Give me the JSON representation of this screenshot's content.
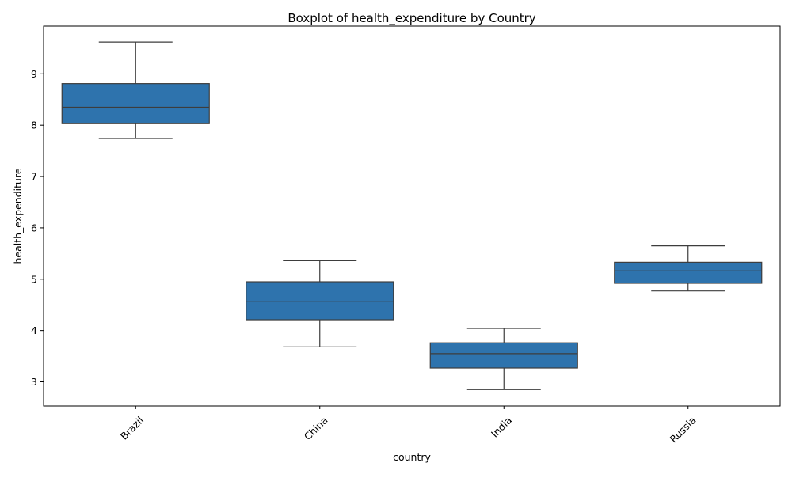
{
  "chart_data": {
    "type": "boxplot",
    "title": "Boxplot of health_expenditure by Country",
    "xlabel": "country",
    "ylabel": "health_expenditure",
    "ylim": [
      2.53,
      9.93
    ],
    "y_ticks": [
      3,
      4,
      5,
      6,
      7,
      8,
      9
    ],
    "y_tick_labels": [
      "3",
      "4",
      "5",
      "6",
      "7",
      "8",
      "9"
    ],
    "x_tick_rotation_deg": 45,
    "grid": false,
    "legend": "none",
    "box_color": "#2e73ad",
    "line_color": "#3d3d3d",
    "categories": [
      "Brazil",
      "China",
      "India",
      "Russia"
    ],
    "boxes": [
      {
        "category": "Brazil",
        "whisker_low": 7.74,
        "q1": 8.03,
        "median": 8.35,
        "q3": 8.81,
        "whisker_high": 9.62
      },
      {
        "category": "China",
        "whisker_low": 3.68,
        "q1": 4.21,
        "median": 4.56,
        "q3": 4.95,
        "whisker_high": 5.36
      },
      {
        "category": "India",
        "whisker_low": 2.85,
        "q1": 3.27,
        "median": 3.55,
        "q3": 3.76,
        "whisker_high": 4.04
      },
      {
        "category": "Russia",
        "whisker_low": 4.77,
        "q1": 4.92,
        "median": 5.16,
        "q3": 5.33,
        "whisker_high": 5.65
      }
    ]
  }
}
